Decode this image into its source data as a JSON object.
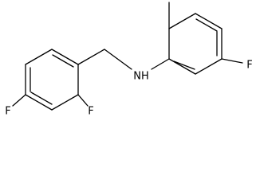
{
  "atom_labels": [
    "F",
    "F",
    "NH",
    "F"
  ]
}
